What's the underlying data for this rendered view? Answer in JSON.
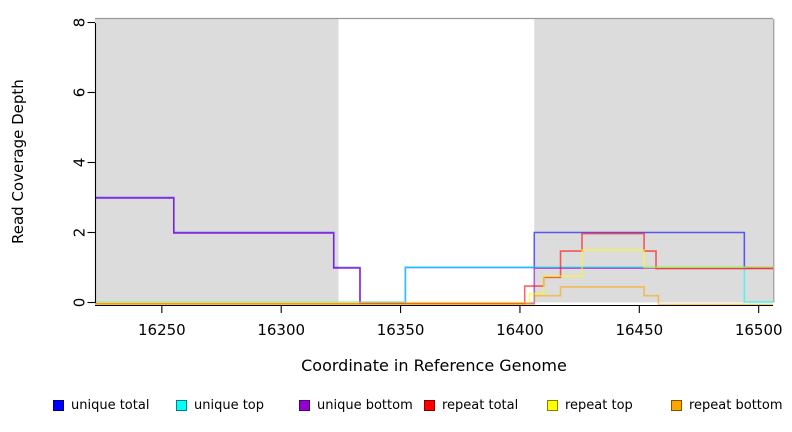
{
  "chart_data": {
    "type": "line",
    "subtype": "step-coverage",
    "title": "",
    "xlabel": "Coordinate in Reference Genome",
    "ylabel": "Read Coverage Depth",
    "xlim": [
      16222,
      16506
    ],
    "ylim": [
      0,
      8
    ],
    "x_ticks": [
      "16250",
      "16300",
      "16350",
      "16400",
      "16450",
      "16500"
    ],
    "y_ticks": [
      "0",
      "2",
      "4",
      "6",
      "8"
    ],
    "grid": false,
    "legend_position": "bottom",
    "shade_color": "#dcdcdc",
    "shaded_regions": [
      {
        "from": 16222,
        "to": 16324
      },
      {
        "from": 16406,
        "to": 16506
      }
    ],
    "series": [
      {
        "name": "unique total",
        "color": "#0000ff",
        "points": [
          [
            16222,
            3
          ],
          [
            16255,
            2
          ],
          [
            16322,
            1
          ],
          [
            16333,
            0
          ],
          [
            16352,
            1
          ],
          [
            16406,
            2
          ],
          [
            16494,
            1
          ],
          [
            16506,
            1
          ]
        ]
      },
      {
        "name": "unique top",
        "color": "#00ffff",
        "points": [
          [
            16222,
            0
          ],
          [
            16352,
            1
          ],
          [
            16494,
            0
          ],
          [
            16506,
            0
          ]
        ]
      },
      {
        "name": "unique bottom",
        "color": "#9400d3",
        "points": [
          [
            16222,
            3
          ],
          [
            16255,
            2
          ],
          [
            16322,
            1
          ],
          [
            16333,
            0
          ],
          [
            16406,
            1
          ],
          [
            16506,
            1
          ]
        ]
      },
      {
        "name": "repeat total",
        "color": "#ff0000",
        "points": [
          [
            16222,
            0
          ],
          [
            16402,
            0.5
          ],
          [
            16410,
            0.75
          ],
          [
            16417,
            1.5
          ],
          [
            16426,
            2
          ],
          [
            16452,
            1.5
          ],
          [
            16457,
            1
          ],
          [
            16506,
            1
          ]
        ]
      },
      {
        "name": "repeat top",
        "color": "#ffff00",
        "points": [
          [
            16222,
            0
          ],
          [
            16404,
            0.25
          ],
          [
            16410,
            0.75
          ],
          [
            16426,
            1.5
          ],
          [
            16452,
            1
          ],
          [
            16506,
            1
          ]
        ]
      },
      {
        "name": "repeat bottom",
        "color": "#ffa500",
        "points": [
          [
            16222,
            0
          ],
          [
            16406,
            0.25
          ],
          [
            16417,
            0.5
          ],
          [
            16452,
            0.25
          ],
          [
            16458,
            0
          ],
          [
            16506,
            0
          ]
        ]
      }
    ],
    "legend": [
      {
        "label": "unique total",
        "color": "#0000ff"
      },
      {
        "label": "unique top",
        "color": "#00ffff"
      },
      {
        "label": "unique bottom",
        "color": "#9400d3"
      },
      {
        "label": "repeat total",
        "color": "#ff0000"
      },
      {
        "label": "repeat top",
        "color": "#ffff00"
      },
      {
        "label": "repeat bottom",
        "color": "#ffa500"
      }
    ]
  }
}
